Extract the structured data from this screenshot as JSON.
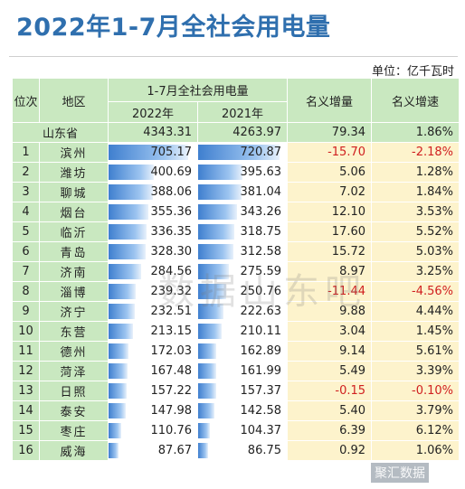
{
  "title": "2022年1-7月全社会用电量",
  "unit": "单位：亿千瓦时",
  "headers": {
    "rank": "位次",
    "area": "地区",
    "group": "1-7月全社会用电量",
    "y2022": "2022年",
    "y2021": "2021年",
    "increase": "名义增量",
    "rate": "名义增速"
  },
  "province": {
    "name": "山东省",
    "v2022": "4343.31",
    "v2021": "4263.97",
    "inc": "79.34",
    "rate": "1.86%"
  },
  "rows": [
    {
      "rank": "1",
      "area": "滨州",
      "v2022": "705.17",
      "v2021": "720.87",
      "inc": "-15.70",
      "rate": "-2.18%"
    },
    {
      "rank": "2",
      "area": "潍坊",
      "v2022": "400.69",
      "v2021": "395.63",
      "inc": "5.06",
      "rate": "1.28%"
    },
    {
      "rank": "3",
      "area": "聊城",
      "v2022": "388.06",
      "v2021": "381.04",
      "inc": "7.02",
      "rate": "1.84%"
    },
    {
      "rank": "4",
      "area": "烟台",
      "v2022": "355.36",
      "v2021": "343.26",
      "inc": "12.10",
      "rate": "3.53%"
    },
    {
      "rank": "5",
      "area": "临沂",
      "v2022": "336.35",
      "v2021": "318.75",
      "inc": "17.60",
      "rate": "5.52%"
    },
    {
      "rank": "6",
      "area": "青岛",
      "v2022": "328.30",
      "v2021": "312.58",
      "inc": "15.72",
      "rate": "5.03%"
    },
    {
      "rank": "7",
      "area": "济南",
      "v2022": "284.56",
      "v2021": "275.59",
      "inc": "8.97",
      "rate": "3.25%"
    },
    {
      "rank": "8",
      "area": "淄博",
      "v2022": "239.32",
      "v2021": "250.76",
      "inc": "-11.44",
      "rate": "-4.56%"
    },
    {
      "rank": "9",
      "area": "济宁",
      "v2022": "232.51",
      "v2021": "222.63",
      "inc": "9.88",
      "rate": "4.44%"
    },
    {
      "rank": "10",
      "area": "东营",
      "v2022": "213.15",
      "v2021": "210.11",
      "inc": "3.04",
      "rate": "1.45%"
    },
    {
      "rank": "11",
      "area": "德州",
      "v2022": "172.03",
      "v2021": "162.89",
      "inc": "9.14",
      "rate": "5.61%"
    },
    {
      "rank": "12",
      "area": "菏泽",
      "v2022": "167.48",
      "v2021": "161.99",
      "inc": "5.49",
      "rate": "3.39%"
    },
    {
      "rank": "13",
      "area": "日照",
      "v2022": "157.22",
      "v2021": "157.37",
      "inc": "-0.15",
      "rate": "-0.10%"
    },
    {
      "rank": "14",
      "area": "泰安",
      "v2022": "147.98",
      "v2021": "142.58",
      "inc": "5.40",
      "rate": "3.79%"
    },
    {
      "rank": "15",
      "area": "枣庄",
      "v2022": "110.76",
      "v2021": "104.37",
      "inc": "6.39",
      "rate": "6.12%"
    },
    {
      "rank": "16",
      "area": "威海",
      "v2022": "87.67",
      "v2021": "86.75",
      "inc": "0.92",
      "rate": "1.06%"
    }
  ],
  "watermark": "数据山东吧",
  "corner_mark": "聚汇数据",
  "colors": {
    "title": "#2f6fae",
    "header_bg": "#c9e8c0",
    "bar": "#3f7fcf",
    "change_bg": "#fdf3cc",
    "negative": "#d02020"
  }
}
